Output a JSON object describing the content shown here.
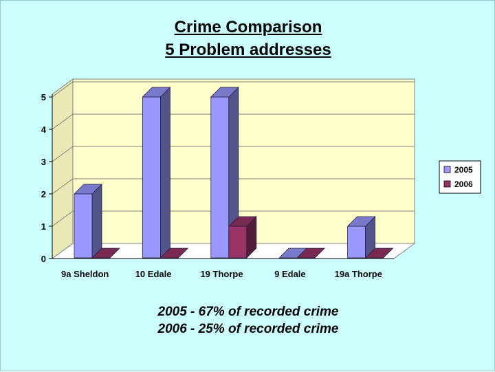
{
  "slide": {
    "title_line1": "Crime Comparison",
    "title_line2": "5 Problem addresses",
    "footer_line1": "2005 - 67% of recorded crime",
    "footer_line2": "2006 - 25% of recorded crime"
  },
  "chart_data": {
    "type": "bar",
    "title": "",
    "categories": [
      "9a Sheldon",
      "10 Edale",
      "19 Thorpe",
      "9 Edale",
      "19a Thorpe"
    ],
    "series": [
      {
        "name": "2005",
        "values": [
          2,
          5,
          5,
          0,
          1
        ],
        "color": "#9999ff"
      },
      {
        "name": "2006",
        "values": [
          0,
          0,
          1,
          0,
          0
        ],
        "color": "#993366"
      }
    ],
    "yticks": [
      "0",
      "1",
      "2",
      "3",
      "4",
      "5"
    ],
    "ylim": [
      0,
      5
    ],
    "grid": true,
    "legend": "right",
    "plot_background": "#ffffcc"
  }
}
